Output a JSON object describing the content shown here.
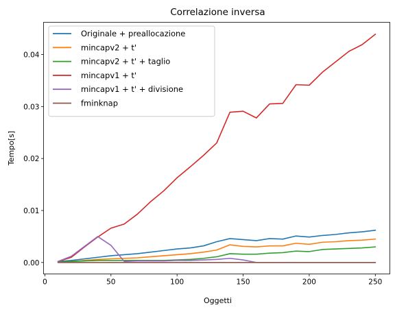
{
  "chart_data": {
    "type": "line",
    "title": "Correlazione inversa",
    "xlabel": "Oggetti",
    "ylabel": "Tempo[s]",
    "xlim": [
      -1,
      261
    ],
    "ylim": [
      -0.0022,
      0.0462
    ],
    "xticks": [
      0,
      50,
      100,
      150,
      200,
      250
    ],
    "yticks": [
      0.0,
      0.01,
      0.02,
      0.03,
      0.04
    ],
    "ytick_labels": [
      "0.00",
      "0.01",
      "0.02",
      "0.03",
      "0.04"
    ],
    "grid": false,
    "legend_position": "top-left",
    "x": [
      10,
      20,
      30,
      40,
      50,
      60,
      70,
      80,
      90,
      100,
      110,
      120,
      130,
      140,
      150,
      160,
      170,
      180,
      190,
      200,
      210,
      220,
      230,
      240,
      250
    ],
    "series": [
      {
        "name": "Originale + preallocazione",
        "color": "#1f77b4",
        "values": [
          0.0002,
          0.0004,
          0.0007,
          0.001,
          0.0013,
          0.0015,
          0.0017,
          0.002,
          0.0023,
          0.0026,
          0.0028,
          0.0032,
          0.004,
          0.0046,
          0.0044,
          0.0042,
          0.0046,
          0.0045,
          0.0051,
          0.0049,
          0.0052,
          0.0054,
          0.0057,
          0.0059,
          0.0062
        ]
      },
      {
        "name": "mincapv2 + t'",
        "color": "#ff7f0e",
        "values": [
          0.0001,
          0.0002,
          0.0004,
          0.0006,
          0.0007,
          0.0008,
          0.0009,
          0.0011,
          0.0013,
          0.0015,
          0.0017,
          0.002,
          0.0024,
          0.0034,
          0.0031,
          0.003,
          0.0032,
          0.0032,
          0.0037,
          0.0035,
          0.0039,
          0.004,
          0.0042,
          0.0043,
          0.0045
        ]
      },
      {
        "name": "mincapv2 + t' + taglio",
        "color": "#2ca02c",
        "values": [
          0.0001,
          0.0002,
          0.0003,
          0.0004,
          0.0004,
          0.0004,
          0.0004,
          0.0004,
          0.0004,
          0.0005,
          0.0006,
          0.0008,
          0.0011,
          0.0017,
          0.0016,
          0.0016,
          0.0018,
          0.0019,
          0.0022,
          0.0021,
          0.0025,
          0.0026,
          0.0027,
          0.0028,
          0.003
        ]
      },
      {
        "name": "mincapv1 + t'",
        "color": "#d62728",
        "values": [
          0.0002,
          0.001,
          0.003,
          0.0049,
          0.0066,
          0.0074,
          0.0093,
          0.0117,
          0.0138,
          0.0163,
          0.0184,
          0.0206,
          0.023,
          0.0289,
          0.0291,
          0.0278,
          0.0305,
          0.0306,
          0.0342,
          0.0341,
          0.0366,
          0.0386,
          0.0406,
          0.0419,
          0.0439
        ]
      },
      {
        "name": "mincapv1 + t' + divisione",
        "color": "#9467bd",
        "values": [
          0.0002,
          0.0012,
          0.0031,
          0.005,
          0.0033,
          0.0002,
          0.0003,
          0.0003,
          0.0003,
          0.0004,
          0.0004,
          0.0005,
          0.0006,
          0.0008,
          0.0005,
          0.0,
          0.0,
          0.0,
          0.0,
          0.0,
          0.0,
          0.0,
          0.0,
          0.0,
          0.0
        ]
      },
      {
        "name": "fminknap",
        "color": "#8c564b",
        "values": [
          0.0,
          0.0,
          0.0,
          0.0,
          0.0,
          0.0,
          0.0,
          0.0,
          0.0,
          0.0,
          0.0,
          0.0,
          0.0,
          0.0,
          0.0,
          0.0,
          0.0,
          0.0,
          0.0,
          0.0,
          0.0,
          0.0,
          0.0,
          0.0,
          0.0
        ]
      }
    ]
  }
}
